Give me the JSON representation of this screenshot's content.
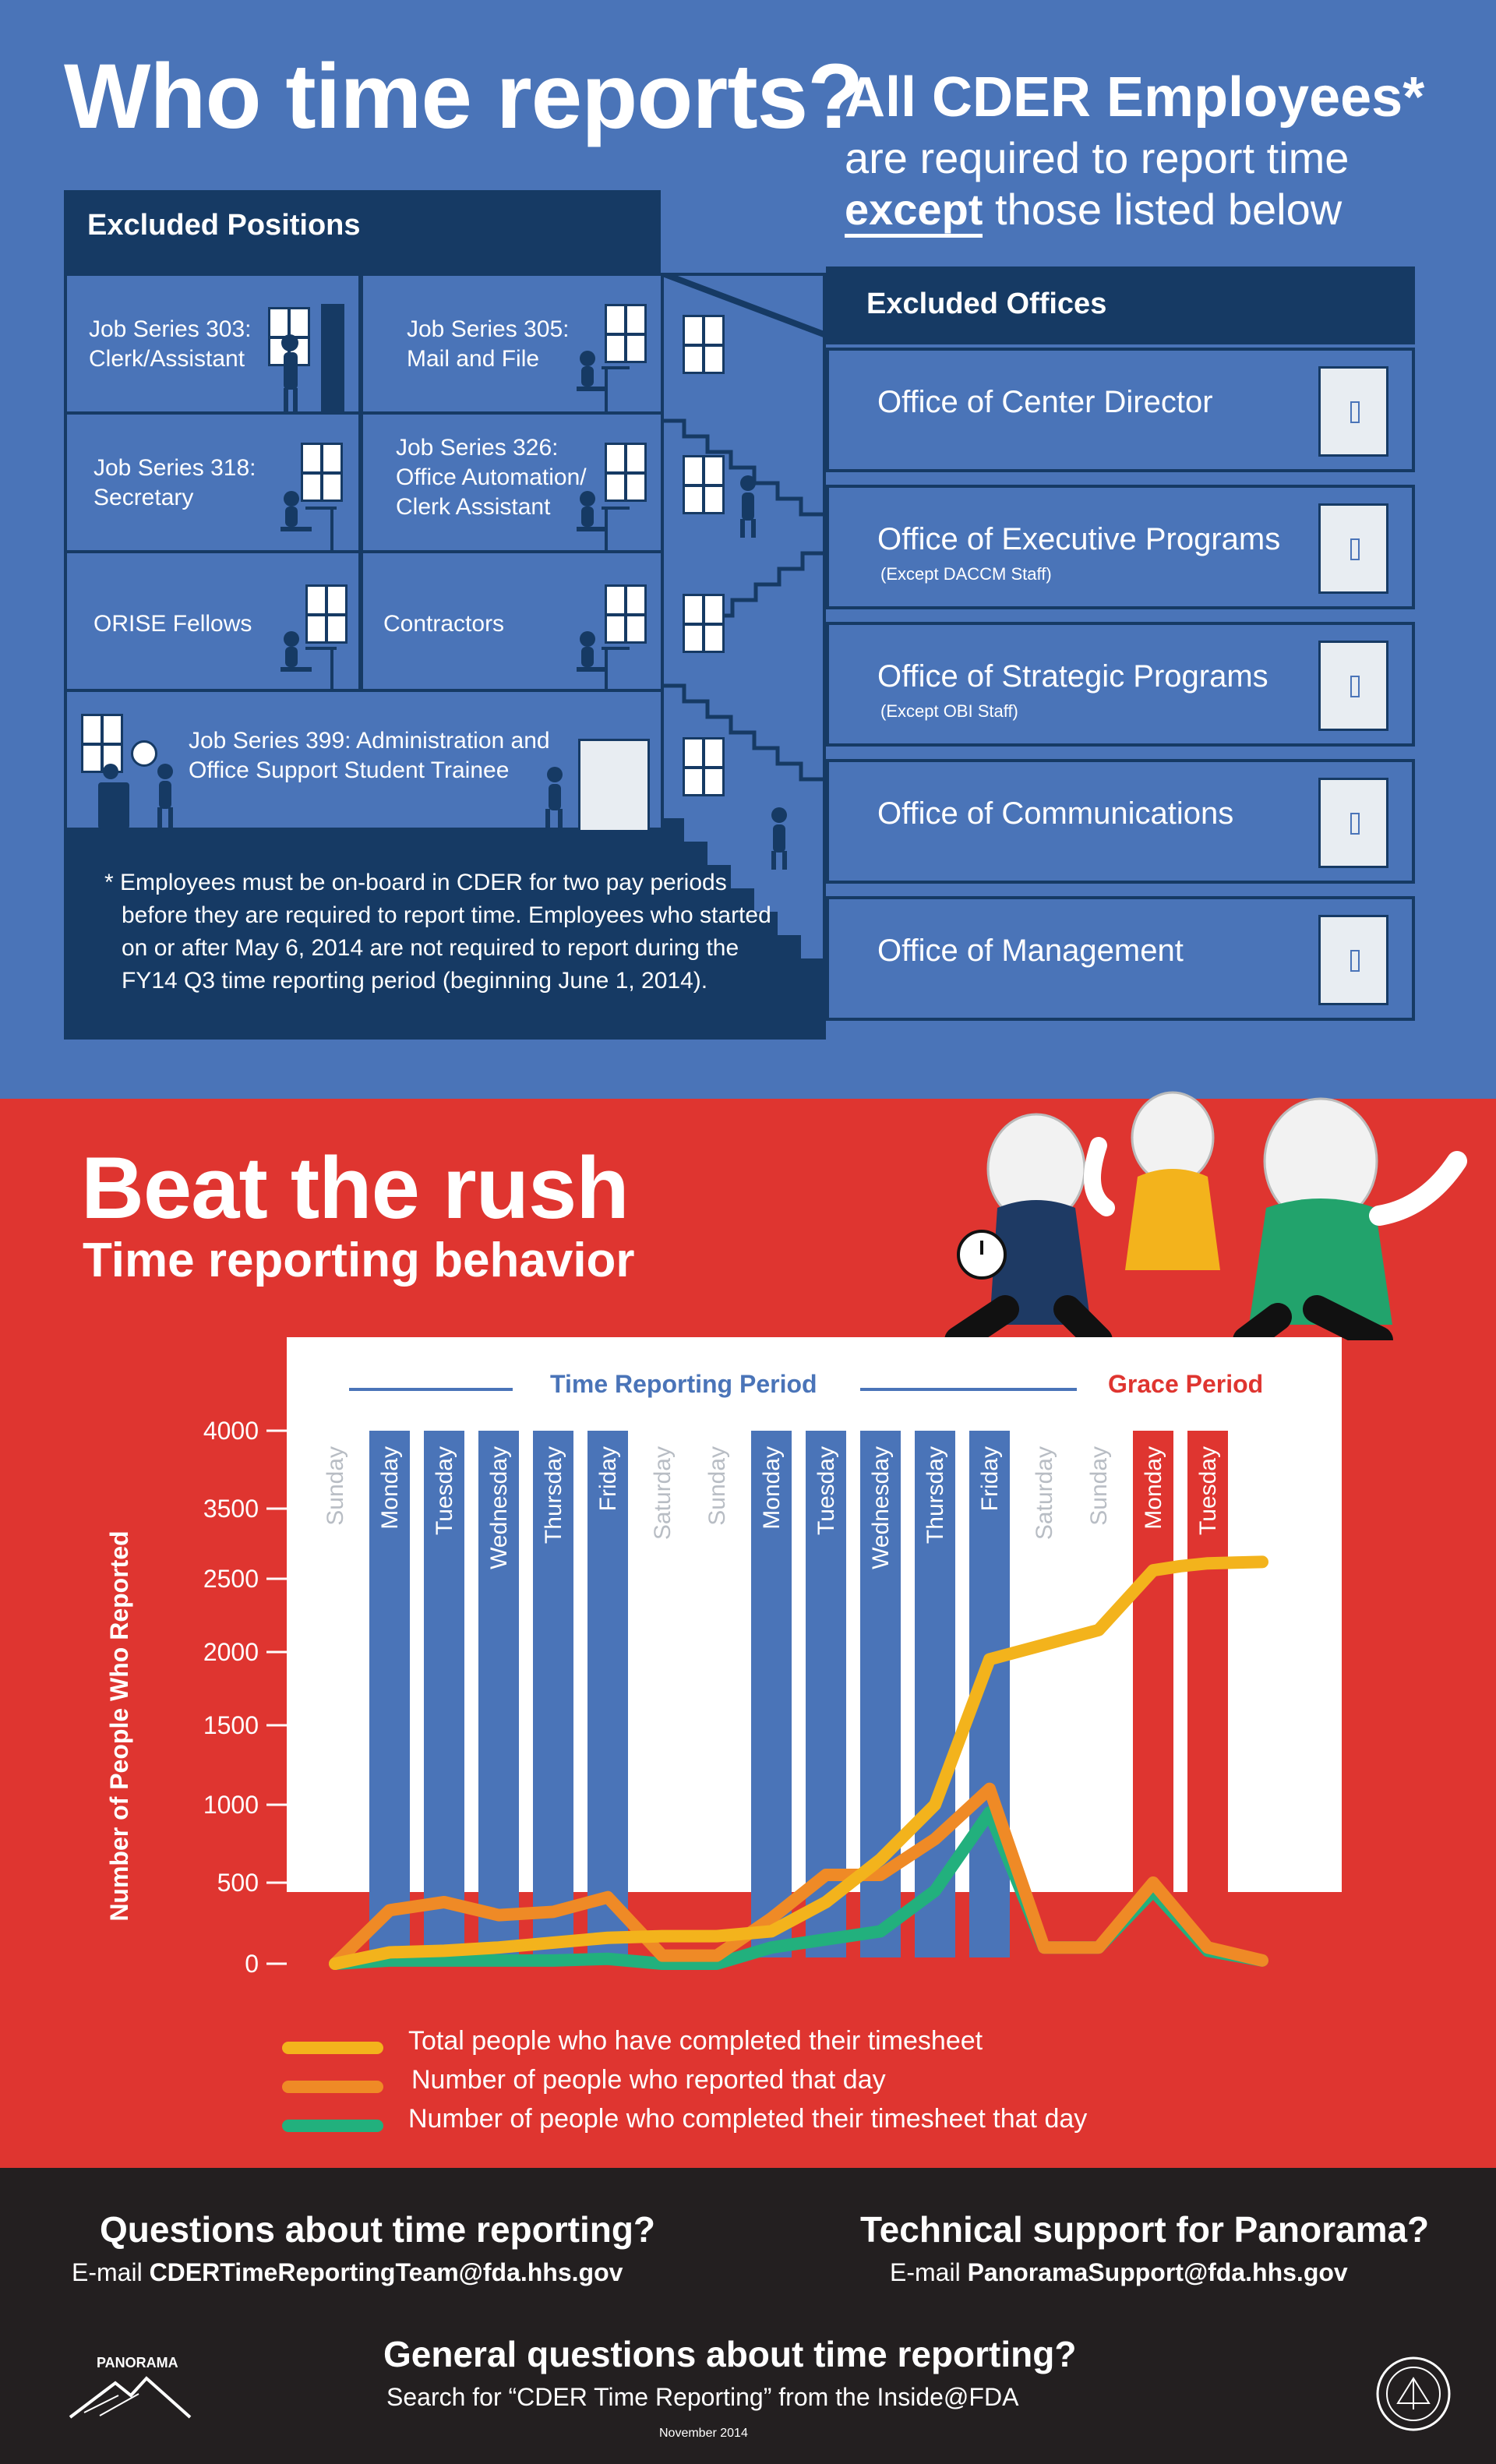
{
  "top": {
    "title": "Who time reports?",
    "all_cder": "All CDER Employees*",
    "required_line": "are required to report time",
    "except_word": "except",
    "except_rest": "those listed below",
    "excluded_positions_head": "Excluded Positions",
    "positions": [
      "Job Series 303: Clerk/Assistant",
      "Job Series 305: Mail and File",
      "Job Series 318: Secretary",
      "Job Series 326: Office Automation/ Clerk Assistant",
      "ORISE Fellows",
      "Contractors",
      "Job Series 399: Administration and Office Support Student Trainee"
    ],
    "footnote": "* Employees must be on-board in CDER for two pay periods before they are required to report time. Employees who started on or after May 6, 2014 are not required to report during the FY14 Q3 time reporting period (beginning June 1, 2014).",
    "excluded_offices_head": "Excluded Offices",
    "offices": [
      {
        "name": "Office of Center Director",
        "note": ""
      },
      {
        "name": "Office of Executive Programs",
        "note": "(Except DACCM Staff)"
      },
      {
        "name": "Office of Strategic Programs",
        "note": "(Except OBI Staff)"
      },
      {
        "name": "Office of Communications",
        "note": ""
      },
      {
        "name": "Office of Management",
        "note": ""
      }
    ]
  },
  "mid": {
    "title": "Beat the rush",
    "subtitle": "Time reporting behavior",
    "period_label": "Time Reporting Period",
    "grace_label": "Grace Period"
  },
  "chart_data": {
    "type": "line",
    "ylabel": "Number of People Who Reported",
    "y_ticks": [
      "4000",
      "3500",
      "2500",
      "2000",
      "1500",
      "1000",
      "500",
      "0"
    ],
    "categories": [
      "Sunday",
      "Monday",
      "Tuesday",
      "Wednesday",
      "Thursday",
      "Friday",
      "Saturday",
      "Sunday",
      "Monday",
      "Tuesday",
      "Wednesday",
      "Thursday",
      "Friday",
      "Saturday",
      "Sunday",
      "Monday",
      "Tuesday"
    ],
    "category_kind": [
      "weekend",
      "period",
      "period",
      "period",
      "period",
      "period",
      "weekend",
      "weekend",
      "period",
      "period",
      "period",
      "period",
      "period",
      "weekend",
      "weekend",
      "grace",
      "grace"
    ],
    "series": [
      {
        "name": "Total people who have completed their timesheet",
        "color": "#f3b31c",
        "x": [
          0,
          1,
          2,
          3,
          4,
          5,
          6,
          7,
          8,
          9,
          10,
          11,
          12,
          13,
          14,
          15,
          15.5,
          16,
          16.5,
          17
        ],
        "y": [
          0,
          70,
          80,
          100,
          130,
          160,
          170,
          170,
          200,
          380,
          650,
          1000,
          1950,
          2050,
          2150,
          2620,
          2680,
          2720,
          2730,
          2740
        ]
      },
      {
        "name": "Number of people who reported that day",
        "color": "#ef8a26",
        "x": [
          0,
          1,
          2,
          3,
          4,
          5,
          6,
          7,
          8,
          9,
          10,
          11,
          12,
          13,
          14,
          15,
          16,
          17
        ],
        "y": [
          0,
          330,
          380,
          300,
          320,
          410,
          50,
          50,
          280,
          550,
          550,
          780,
          1100,
          100,
          100,
          500,
          100,
          20
        ]
      },
      {
        "name": "Number of people who completed their timesheet that day",
        "color": "#22b07d",
        "x": [
          0,
          1,
          2,
          3,
          4,
          5,
          6,
          7,
          8,
          9,
          10,
          11,
          12,
          13,
          14,
          15,
          16,
          17
        ],
        "y": [
          0,
          20,
          20,
          20,
          20,
          30,
          0,
          0,
          100,
          150,
          200,
          450,
          950,
          100,
          100,
          450,
          80,
          20
        ]
      }
    ]
  },
  "bottom": {
    "q1_title": "Questions about time reporting?",
    "q1_prefix": "E-mail",
    "q1_email": "CDERTimeReportingTeam@fda.hhs.gov",
    "q2_title": "Technical support for Panorama?",
    "q2_prefix": "E-mail",
    "q2_email": "PanoramaSupport@fda.hhs.gov",
    "q3_title": "General questions about time reporting?",
    "q3_line": "Search for “CDER Time Reporting” from the Inside@FDA",
    "date": "November 2014",
    "logo_text": "PANORAMA"
  }
}
